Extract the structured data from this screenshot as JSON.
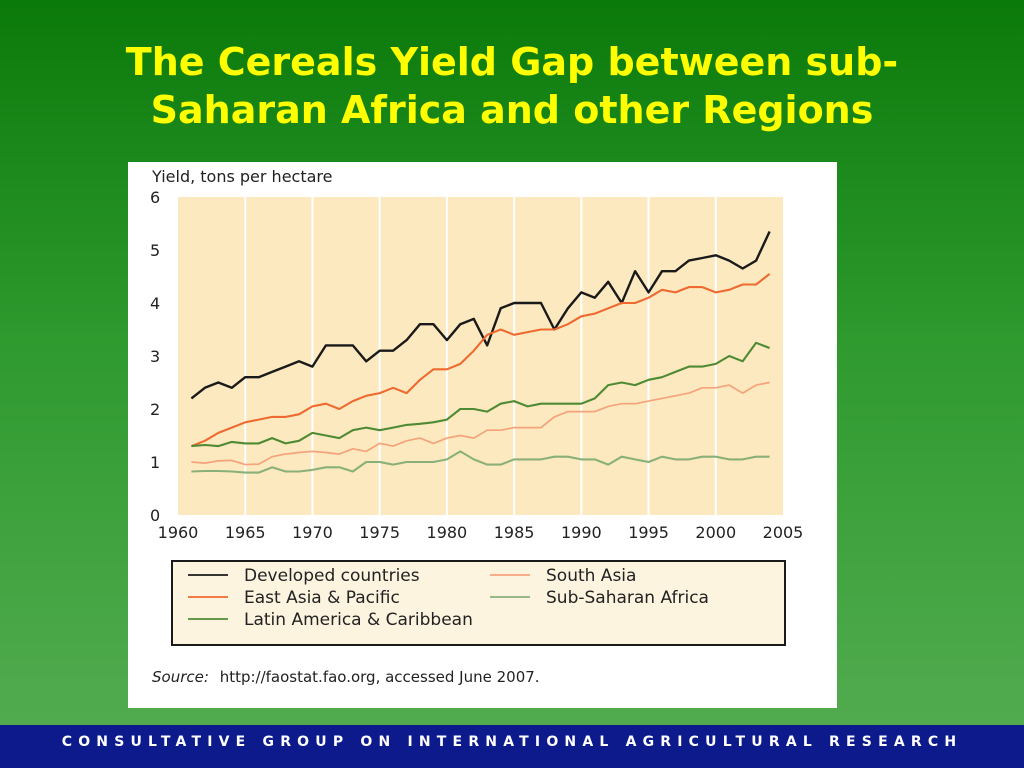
{
  "slide": {
    "title_line1": "The Cereals Yield Gap between sub-",
    "title_line2": "Saharan Africa and other Regions",
    "footer": "CONSULTATIVE GROUP ON INTERNATIONAL AGRICULTURAL RESEARCH"
  },
  "colors": {
    "title": "#ffff00",
    "footer_bg": "#0c1a8c",
    "plot_bg": "#fde9bf",
    "legend_bg": "#fdf4e0"
  },
  "chart_data": {
    "type": "line",
    "ylabel": "Yield, tons per hectare",
    "source_label": "Source:",
    "source_text": "http://faostat.fao.org, accessed June 2007.",
    "xlim": [
      1960,
      2005
    ],
    "ylim": [
      0,
      6
    ],
    "x_ticks": [
      "1960",
      "1965",
      "1970",
      "1975",
      "1980",
      "1985",
      "1990",
      "1995",
      "2000",
      "2005"
    ],
    "y_ticks": [
      "0",
      "1",
      "2",
      "3",
      "4",
      "5",
      "6"
    ],
    "grid": "vertical",
    "legend_position": "bottom",
    "x": [
      1961,
      1962,
      1963,
      1964,
      1965,
      1966,
      1967,
      1968,
      1969,
      1970,
      1971,
      1972,
      1973,
      1974,
      1975,
      1976,
      1977,
      1978,
      1979,
      1980,
      1981,
      1982,
      1983,
      1984,
      1985,
      1986,
      1987,
      1988,
      1989,
      1990,
      1991,
      1992,
      1993,
      1994,
      1995,
      1996,
      1997,
      1998,
      1999,
      2000,
      2001,
      2002,
      2003,
      2004
    ],
    "series": [
      {
        "name": "Developed countries",
        "color": "#1a1a1a",
        "width": 2.4,
        "values": [
          2.2,
          2.4,
          2.5,
          2.4,
          2.6,
          2.6,
          2.7,
          2.8,
          2.9,
          2.8,
          3.2,
          3.2,
          3.2,
          2.9,
          3.1,
          3.1,
          3.3,
          3.6,
          3.6,
          3.3,
          3.6,
          3.7,
          3.2,
          3.9,
          4.0,
          4.0,
          4.0,
          3.5,
          3.9,
          4.2,
          4.1,
          4.4,
          4.0,
          4.6,
          4.2,
          4.6,
          4.6,
          4.8,
          4.85,
          4.9,
          4.8,
          4.65,
          4.8,
          5.35
        ]
      },
      {
        "name": "South Asia",
        "color": "#f5a37c",
        "width": 1.7,
        "values": [
          1.0,
          0.98,
          1.02,
          1.03,
          0.95,
          0.96,
          1.1,
          1.15,
          1.18,
          1.2,
          1.18,
          1.15,
          1.25,
          1.2,
          1.35,
          1.3,
          1.4,
          1.45,
          1.35,
          1.45,
          1.5,
          1.45,
          1.6,
          1.6,
          1.65,
          1.65,
          1.65,
          1.85,
          1.95,
          1.95,
          1.95,
          2.05,
          2.1,
          2.1,
          2.15,
          2.2,
          2.25,
          2.3,
          2.4,
          2.4,
          2.45,
          2.3,
          2.45,
          2.5
        ]
      },
      {
        "name": "East Asia & Pacific",
        "color": "#ee6a30",
        "width": 2.1,
        "values": [
          1.3,
          1.4,
          1.55,
          1.65,
          1.75,
          1.8,
          1.85,
          1.85,
          1.9,
          2.05,
          2.1,
          2.0,
          2.15,
          2.25,
          2.3,
          2.4,
          2.3,
          2.55,
          2.75,
          2.75,
          2.85,
          3.1,
          3.4,
          3.5,
          3.4,
          3.45,
          3.5,
          3.5,
          3.6,
          3.75,
          3.8,
          3.9,
          4.0,
          4.0,
          4.1,
          4.25,
          4.2,
          4.3,
          4.3,
          4.2,
          4.25,
          4.35,
          4.35,
          4.55
        ]
      },
      {
        "name": "Sub-Saharan Africa",
        "color": "#8ab07a",
        "width": 2.1,
        "values": [
          0.82,
          0.83,
          0.83,
          0.82,
          0.8,
          0.8,
          0.9,
          0.82,
          0.82,
          0.85,
          0.9,
          0.9,
          0.82,
          1.0,
          1.0,
          0.95,
          1.0,
          1.0,
          1.0,
          1.05,
          1.2,
          1.05,
          0.95,
          0.95,
          1.05,
          1.05,
          1.05,
          1.1,
          1.1,
          1.05,
          1.05,
          0.95,
          1.1,
          1.05,
          1.0,
          1.1,
          1.05,
          1.05,
          1.1,
          1.1,
          1.05,
          1.05,
          1.1,
          1.1
        ]
      },
      {
        "name": "Latin America & Caribbean",
        "color": "#4e8a33",
        "width": 2.1,
        "values": [
          1.3,
          1.32,
          1.3,
          1.38,
          1.35,
          1.35,
          1.45,
          1.35,
          1.4,
          1.55,
          1.5,
          1.45,
          1.6,
          1.65,
          1.6,
          1.65,
          1.7,
          1.72,
          1.75,
          1.8,
          2.0,
          2.0,
          1.95,
          2.1,
          2.15,
          2.05,
          2.1,
          2.1,
          2.1,
          2.1,
          2.2,
          2.45,
          2.5,
          2.45,
          2.55,
          2.6,
          2.7,
          2.8,
          2.8,
          2.85,
          3.0,
          2.9,
          3.25,
          3.15
        ]
      }
    ],
    "legend": [
      {
        "label": "Developed countries",
        "color": "#1a1a1a"
      },
      {
        "label": "South Asia",
        "color": "#f5a37c"
      },
      {
        "label": "East Asia & Pacific",
        "color": "#ee6a30"
      },
      {
        "label": "Sub-Saharan Africa",
        "color": "#8ab07a"
      },
      {
        "label": "Latin America & Caribbean",
        "color": "#4e8a33"
      }
    ]
  }
}
